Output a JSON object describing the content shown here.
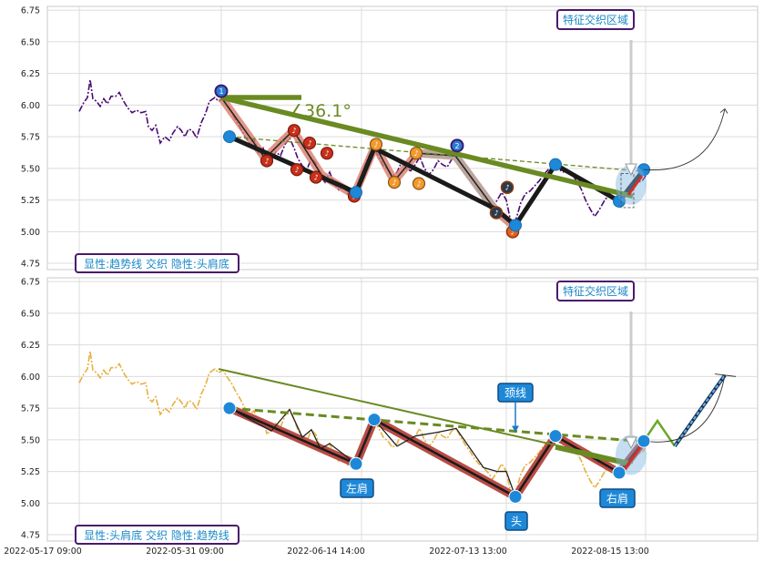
{
  "chart_data": [
    {
      "type": "line",
      "panel": "top",
      "ylim": [
        4.7,
        6.78
      ],
      "yticks": [
        "4.75",
        "5.00",
        "5.25",
        "5.50",
        "5.75",
        "6.00",
        "6.25",
        "6.50",
        "6.75"
      ],
      "grid": true,
      "caption": "显性:趋势线 交织 隐性:头肩底",
      "region_label": "特征交织区域",
      "angle_label": "∠36.1°",
      "badges": [
        "1",
        "2"
      ],
      "colors": {
        "price": "#4b0a73",
        "trend": "#6a8a22",
        "zigzag": "#1a1a1a",
        "pattern": "#d87c6c",
        "node": "#1e88d8"
      }
    },
    {
      "type": "line",
      "panel": "bottom",
      "ylim": [
        4.7,
        6.78
      ],
      "yticks": [
        "4.75",
        "5.00",
        "5.25",
        "5.50",
        "5.75",
        "6.00",
        "6.25",
        "6.50",
        "6.75"
      ],
      "grid": true,
      "caption": "显性:头肩底 交织 隐性:趋势线",
      "region_label": "特征交织区域",
      "labels": {
        "neckline": "颈线",
        "left_shoulder": "左肩",
        "head": "头",
        "right_shoulder": "右肩"
      },
      "colors": {
        "price": "#e8b040",
        "trend": "#6a8a22",
        "pattern": "#b84c44",
        "node": "#1e88d8",
        "projection": "#3a8ed0"
      }
    }
  ],
  "x_axis": {
    "ticks": [
      "2022-05-17 09:00",
      "2022-05-31 09:00",
      "2022-06-14 14:00",
      "2022-07-13 13:00",
      "2022-08-15 13:00"
    ]
  }
}
